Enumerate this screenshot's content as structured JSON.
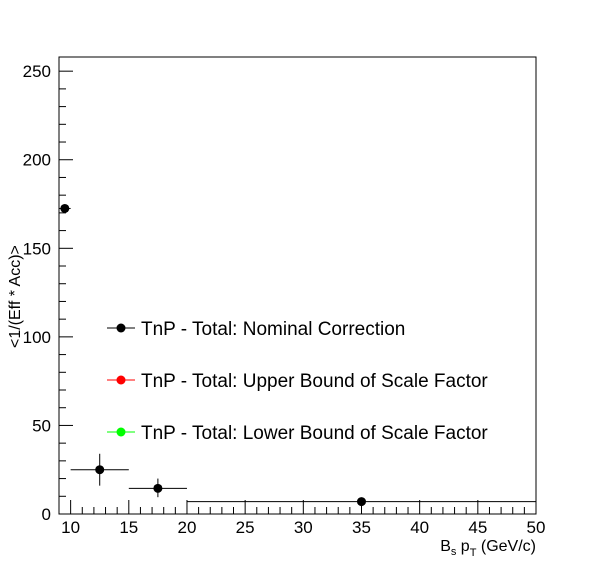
{
  "chart_data": {
    "type": "scatter",
    "title": "",
    "xlabel": {
      "main": "B",
      "sub": "s",
      "mid": " p",
      "sub2": "T",
      "tail": " (GeV/c)"
    },
    "ylabel": "<1/(Eff * Acc)>",
    "xlim": [
      9,
      50
    ],
    "ylim": [
      0,
      258
    ],
    "x_ticks": [
      10,
      15,
      20,
      25,
      30,
      35,
      40,
      45,
      50
    ],
    "y_ticks": [
      0,
      50,
      100,
      150,
      200,
      250
    ],
    "grid": false,
    "legend_position": "center-left",
    "series": [
      {
        "name": "TnP - Total: Nominal Correction",
        "color": "#000000",
        "points": [
          {
            "x": 9.5,
            "y": 172.5,
            "xlow": 9,
            "xhigh": 10,
            "ylow": 171,
            "yhigh": 174
          },
          {
            "x": 12.5,
            "y": 25,
            "xlow": 10,
            "xhigh": 15,
            "ylow": 16,
            "yhigh": 34
          },
          {
            "x": 17.5,
            "y": 14.5,
            "xlow": 15,
            "xhigh": 20,
            "ylow": 9.5,
            "yhigh": 20
          },
          {
            "x": 35,
            "y": 7,
            "xlow": 20,
            "xhigh": 50,
            "ylow": 5.5,
            "yhigh": 8.5
          }
        ]
      },
      {
        "name": "TnP - Total: Upper Bound of Scale Factor",
        "color": "#ff0000",
        "points": []
      },
      {
        "name": "TnP - Total: Lower Bound of Scale Factor",
        "color": "#00ff00",
        "points": []
      }
    ]
  }
}
